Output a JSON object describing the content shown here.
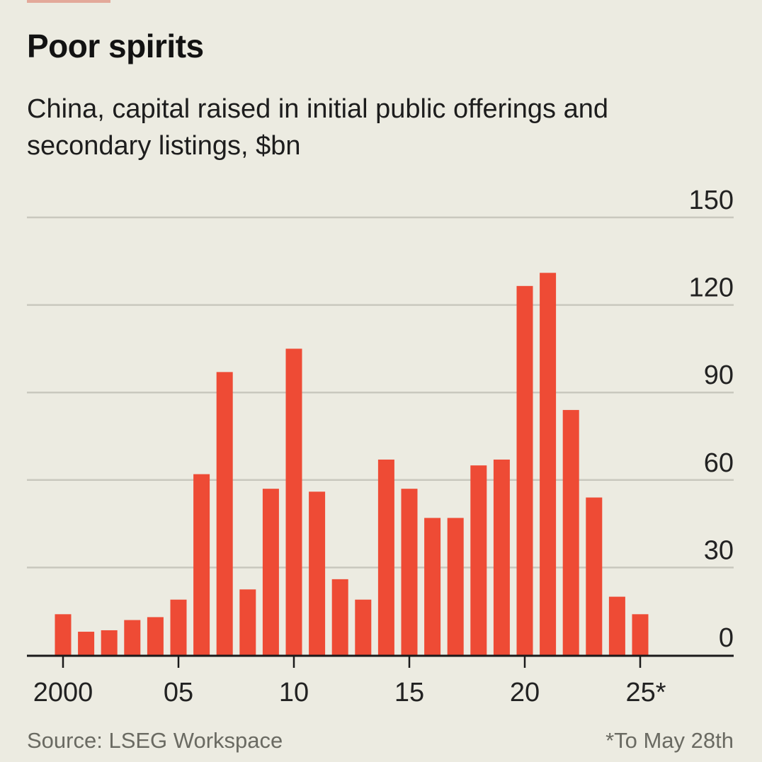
{
  "header": {
    "title": "Poor spirits",
    "subtitle": "China, capital raised in initial public offerings and secondary listings, $bn"
  },
  "footer": {
    "source": "Source: LSEG Workspace",
    "note": "*To May 28th"
  },
  "colors": {
    "background": "#ECEBE1",
    "bar": "#EE4B35",
    "gridline": "#C9C8BE",
    "axis": "#1a1a1a",
    "tag": "#E3A99A"
  },
  "chart_data": {
    "type": "bar",
    "title": "Poor spirits",
    "subtitle": "China, capital raised in initial public offerings and secondary listings, $bn",
    "xlabel": "",
    "ylabel": "$bn",
    "categories": [
      "2000",
      "2001",
      "2002",
      "2003",
      "2004",
      "2005",
      "2006",
      "2007",
      "2008",
      "2009",
      "2010",
      "2011",
      "2012",
      "2013",
      "2014",
      "2015",
      "2016",
      "2017",
      "2018",
      "2019",
      "2020",
      "2021",
      "2022",
      "2023",
      "2024",
      "2025"
    ],
    "values": [
      14,
      8,
      8.5,
      12,
      13,
      19,
      62,
      97,
      22.5,
      57,
      105,
      56,
      26,
      19,
      67,
      57,
      47,
      47,
      65,
      67,
      126.5,
      131,
      84,
      54,
      20,
      14
    ],
    "ylim": [
      0,
      150
    ],
    "yticks": [
      0,
      30,
      60,
      90,
      120,
      150
    ],
    "ytick_labels": [
      "0",
      "30",
      "60",
      "90",
      "120",
      "150"
    ],
    "xticks": [
      "2000",
      "2005",
      "2010",
      "2015",
      "2020",
      "2025"
    ],
    "xtick_labels": [
      "2000",
      "05",
      "10",
      "15",
      "20",
      "25*"
    ],
    "grid": true,
    "y_axis_position": "right",
    "legend": null
  }
}
